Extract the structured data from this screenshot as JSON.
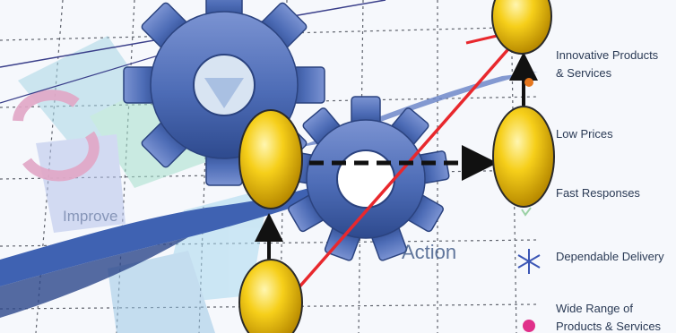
{
  "labels": {
    "innovative": "Innovative Products & Services",
    "low_prices": "Low Prices",
    "fast_responses": "Fast Responses",
    "dependable_delivery": "Dependable Delivery",
    "wide_range": "Wide Range of Products & Services",
    "improve": "Improve",
    "action": "Action"
  },
  "colors": {
    "gear_blue": "#4e6eb8",
    "gear_dark": "#2f4b8f",
    "node_yellow": "#f4c400",
    "red_line": "#e8282d",
    "arrow_black": "#111111",
    "asterisk": "#3b56b5",
    "pink_marker": "#e0308a"
  }
}
